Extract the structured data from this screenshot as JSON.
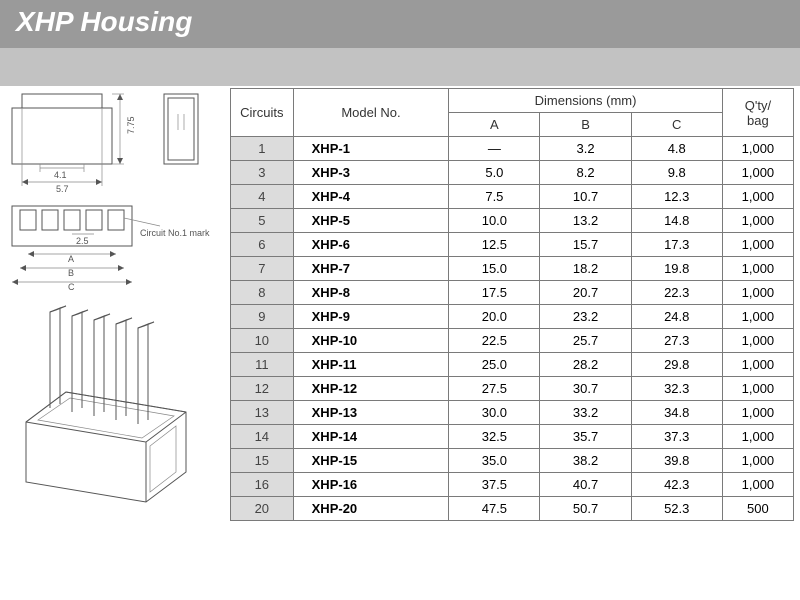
{
  "header": {
    "title": "XHP Housing",
    "title_color": "#ffffff",
    "title_bg": "#9a9a9a",
    "subbar_bg": "#c2c2c2",
    "title_fontsize": 28
  },
  "diagrams": {
    "top_view": {
      "height_label": "7.75",
      "width_outer": "5.7",
      "width_inner": "4.1"
    },
    "front_view": {
      "annotation": "Circuit No.1 mark",
      "pitch": "2.5",
      "dim_labels": [
        "A",
        "B",
        "C"
      ]
    }
  },
  "table": {
    "headers": {
      "circuits": "Circuits",
      "model": "Model No.",
      "dimensions": "Dimensions (mm)",
      "dim_a": "A",
      "dim_b": "B",
      "dim_c": "C",
      "qty": "Q'ty/\nbag"
    },
    "columns": [
      "circuits",
      "model",
      "A",
      "B",
      "C",
      "qty"
    ],
    "rows": [
      {
        "circuits": "1",
        "model": "XHP-1",
        "A": "—",
        "B": "3.2",
        "C": "4.8",
        "qty": "1,000"
      },
      {
        "circuits": "3",
        "model": "XHP-3",
        "A": "5.0",
        "B": "8.2",
        "C": "9.8",
        "qty": "1,000"
      },
      {
        "circuits": "4",
        "model": "XHP-4",
        "A": "7.5",
        "B": "10.7",
        "C": "12.3",
        "qty": "1,000"
      },
      {
        "circuits": "5",
        "model": "XHP-5",
        "A": "10.0",
        "B": "13.2",
        "C": "14.8",
        "qty": "1,000"
      },
      {
        "circuits": "6",
        "model": "XHP-6",
        "A": "12.5",
        "B": "15.7",
        "C": "17.3",
        "qty": "1,000"
      },
      {
        "circuits": "7",
        "model": "XHP-7",
        "A": "15.0",
        "B": "18.2",
        "C": "19.8",
        "qty": "1,000"
      },
      {
        "circuits": "8",
        "model": "XHP-8",
        "A": "17.5",
        "B": "20.7",
        "C": "22.3",
        "qty": "1,000"
      },
      {
        "circuits": "9",
        "model": "XHP-9",
        "A": "20.0",
        "B": "23.2",
        "C": "24.8",
        "qty": "1,000"
      },
      {
        "circuits": "10",
        "model": "XHP-10",
        "A": "22.5",
        "B": "25.7",
        "C": "27.3",
        "qty": "1,000"
      },
      {
        "circuits": "11",
        "model": "XHP-11",
        "A": "25.0",
        "B": "28.2",
        "C": "29.8",
        "qty": "1,000"
      },
      {
        "circuits": "12",
        "model": "XHP-12",
        "A": "27.5",
        "B": "30.7",
        "C": "32.3",
        "qty": "1,000"
      },
      {
        "circuits": "13",
        "model": "XHP-13",
        "A": "30.0",
        "B": "33.2",
        "C": "34.8",
        "qty": "1,000"
      },
      {
        "circuits": "14",
        "model": "XHP-14",
        "A": "32.5",
        "B": "35.7",
        "C": "37.3",
        "qty": "1,000"
      },
      {
        "circuits": "15",
        "model": "XHP-15",
        "A": "35.0",
        "B": "38.2",
        "C": "39.8",
        "qty": "1,000"
      },
      {
        "circuits": "16",
        "model": "XHP-16",
        "A": "37.5",
        "B": "40.7",
        "C": "42.3",
        "qty": "1,000"
      },
      {
        "circuits": "20",
        "model": "XHP-20",
        "A": "47.5",
        "B": "50.7",
        "C": "52.3",
        "qty": "500"
      }
    ],
    "border_color": "#7a7a7a",
    "circuits_bg": "#dcdcdc",
    "font_size": 13
  },
  "colors": {
    "text": "#333333",
    "line": "#555555",
    "bg": "#ffffff"
  }
}
